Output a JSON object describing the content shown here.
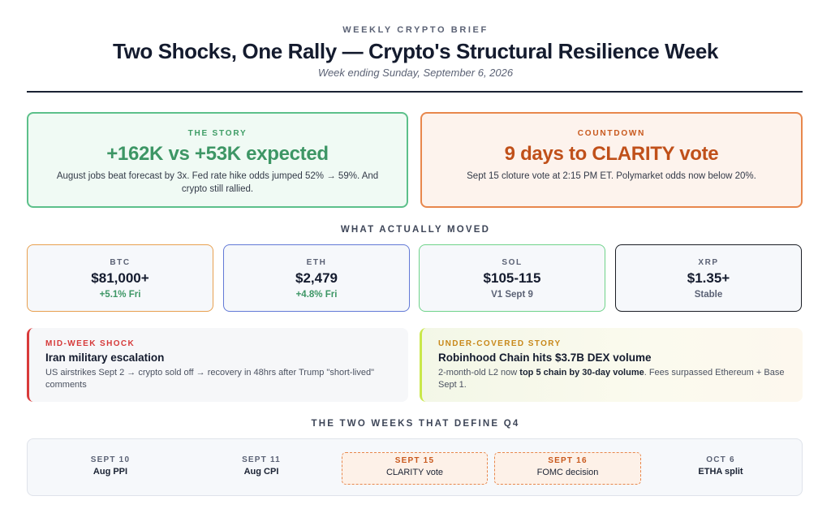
{
  "header": {
    "eyebrow": "WEEKLY CRYPTO BRIEF",
    "title": "Two Shocks, One Rally — Crypto's Structural Resilience Week",
    "subtitle": "Week ending Sunday, September 6, 2026"
  },
  "story": {
    "label": "THE STORY",
    "headline": "+162K vs +53K expected",
    "description": "August jobs beat forecast by 3x. Fed rate hike odds jumped 52% → 59%. And crypto still rallied."
  },
  "countdown": {
    "label": "COUNTDOWN",
    "headline": "9 days to CLARITY vote",
    "description": "Sept 15 cloture vote at 2:15 PM ET. Polymarket odds now below 20%."
  },
  "moved": {
    "heading": "WHAT ACTUALLY MOVED",
    "assets": [
      {
        "symbol": "BTC",
        "price": "$81,000+",
        "sub": "+5.1% Fri"
      },
      {
        "symbol": "ETH",
        "price": "$2,479",
        "sub": "+4.8% Fri"
      },
      {
        "symbol": "SOL",
        "price": "$105-115",
        "sub": "V1 Sept 9"
      },
      {
        "symbol": "XRP",
        "price": "$1.35+",
        "sub": "Stable"
      }
    ]
  },
  "stories": {
    "shock": {
      "label": "MID-WEEK SHOCK",
      "title": "Iran military escalation",
      "description": "US airstrikes Sept 2 → crypto sold off → recovery in 48hrs after Trump \"short-lived\" comments"
    },
    "under": {
      "label": "UNDER-COVERED STORY",
      "title": "Robinhood Chain hits $3.7B DEX volume",
      "desc_pre": "2-month-old L2 now ",
      "desc_bold": "top 5 chain by 30-day volume",
      "desc_post": ". Fees surpassed Ethereum + Base Sept 1."
    }
  },
  "q4": {
    "heading": "THE TWO WEEKS THAT DEFINE Q4",
    "events": [
      {
        "date": "SEPT 10",
        "event": "Aug PPI"
      },
      {
        "date": "SEPT 11",
        "event": "Aug CPI"
      },
      {
        "date": "SEPT 15",
        "event": "CLARITY vote"
      },
      {
        "date": "SEPT 16",
        "event": "FOMC decision"
      },
      {
        "date": "OCT 6",
        "event": "ETHA split"
      }
    ]
  },
  "colors": {
    "green": "#3d9665",
    "orange": "#c0501a",
    "shock_red": "#d93a3a",
    "lime": "#c9e84a"
  }
}
